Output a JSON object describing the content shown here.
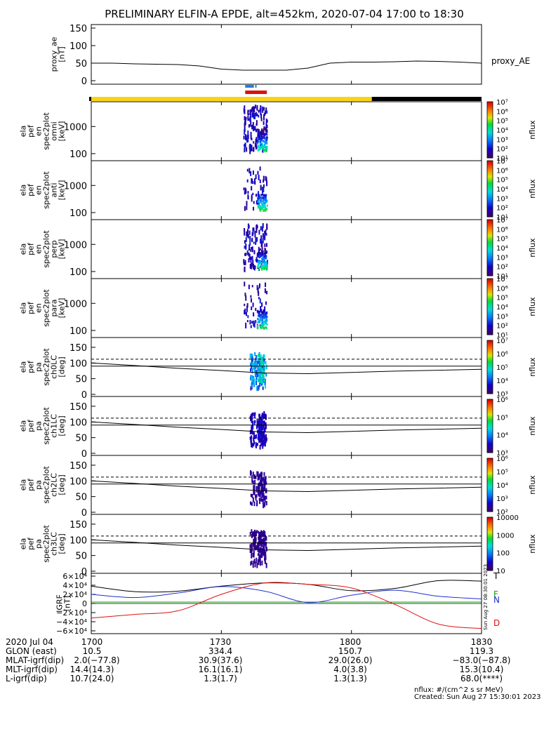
{
  "title": "PRELIMINARY ELFIN-A EPDE, alt=452km, 2020-07-04 17:00 to 18:30",
  "colors": {
    "yellow_bar": "#f7d417",
    "black_bar": "#000000",
    "blue_marker": "#1e7fe6",
    "red_marker": "#e01010",
    "grf_total": "#000000",
    "grf_blue": "#2030d0",
    "grf_green": "#10a010",
    "grf_red": "#e01010"
  },
  "chart_data": [
    {
      "id": "proxy_ae",
      "type": "line",
      "ylabel": [
        "proxy_ae",
        "[nT]"
      ],
      "legend": "proxy_AE",
      "ylim": [
        0,
        150
      ],
      "yticks": [
        "150",
        "100",
        "50",
        "0"
      ],
      "x": [
        0,
        5,
        10,
        15,
        20,
        25,
        30,
        35,
        40,
        45,
        50,
        55,
        60,
        65,
        70,
        75,
        80,
        85,
        90
      ],
      "y": [
        50,
        50,
        48,
        47,
        46,
        42,
        33,
        30,
        30,
        30,
        36,
        50,
        53,
        53,
        54,
        56,
        55,
        53,
        50
      ]
    },
    {
      "id": "omni",
      "type": "heatmap",
      "ylabel": [
        "ela",
        "pef",
        "en",
        "spec2plot",
        "omni",
        "[keV]"
      ],
      "yticks": [
        "1000",
        "100"
      ],
      "colorbar_label": "nflux",
      "colorbar_ticks": [
        "10⁷",
        "10⁶",
        "10⁵",
        "10⁴",
        "10³",
        "10²",
        "10¹"
      ]
    },
    {
      "id": "anti",
      "type": "heatmap",
      "ylabel": [
        "ela",
        "pef",
        "en",
        "spec2plot",
        "anti",
        "[keV]"
      ],
      "yticks": [
        "1000",
        "100"
      ],
      "colorbar_label": "nflux",
      "colorbar_ticks": [
        "10⁷",
        "10⁶",
        "10⁵",
        "10⁴",
        "10³",
        "10²",
        "10¹"
      ]
    },
    {
      "id": "perp",
      "type": "heatmap",
      "ylabel": [
        "ela",
        "pef",
        "en",
        "spec2plot",
        "perp",
        "[keV]"
      ],
      "yticks": [
        "1000",
        "100"
      ],
      "colorbar_label": "nflux",
      "colorbar_ticks": [
        "10⁷",
        "10⁶",
        "10⁵",
        "10⁴",
        "10³",
        "10²",
        "10¹"
      ]
    },
    {
      "id": "para",
      "type": "heatmap",
      "ylabel": [
        "ela",
        "pef",
        "en",
        "spec2plot",
        "para",
        "[keV]"
      ],
      "yticks": [
        "1000",
        "100"
      ],
      "colorbar_label": "nflux",
      "colorbar_ticks": [
        "10⁷",
        "10⁶",
        "10⁵",
        "10⁴",
        "10³",
        "10²",
        "10¹"
      ]
    },
    {
      "id": "ch0LC",
      "type": "heatmap",
      "ylabel": [
        "ela",
        "pef",
        "pa",
        "spec2plot",
        "ch0LC",
        "[deg]"
      ],
      "yticks": [
        "150",
        "100",
        "50",
        "0"
      ],
      "colorbar_label": "nflux",
      "colorbar_ticks": [
        "10⁷",
        "10⁶",
        "10⁵",
        "10⁴",
        "10³"
      ]
    },
    {
      "id": "ch1LC",
      "type": "heatmap",
      "ylabel": [
        "ela",
        "pef",
        "pa",
        "spec2plot",
        "ch1LC",
        "[deg]"
      ],
      "yticks": [
        "150",
        "100",
        "50",
        "0"
      ],
      "colorbar_label": "nflux",
      "colorbar_ticks": [
        "10⁶",
        "10⁵",
        "10⁴",
        "10³"
      ]
    },
    {
      "id": "ch2LC",
      "type": "heatmap",
      "ylabel": [
        "ela",
        "pef",
        "pa",
        "spec2plot",
        "ch2LC",
        "[deg]"
      ],
      "yticks": [
        "150",
        "100",
        "50",
        "0"
      ],
      "colorbar_label": "nflux",
      "colorbar_ticks": [
        "10⁶",
        "10⁵",
        "10⁴",
        "10³",
        "10²"
      ]
    },
    {
      "id": "ch3LC",
      "type": "heatmap",
      "ylabel": [
        "ela",
        "pef",
        "pa",
        "spec2plot",
        "ch3LC",
        "[deg]"
      ],
      "yticks": [
        "150",
        "100",
        "50",
        "0"
      ],
      "colorbar_label": "nflux",
      "colorbar_ticks": [
        "10000",
        "1000",
        "100",
        "10"
      ]
    },
    {
      "id": "igrf",
      "type": "line",
      "ylabel": [
        "IGRF",
        "[nT]"
      ],
      "ylim": [
        -60000,
        60000
      ],
      "yticks": [
        "6×10⁴",
        "4×10⁴",
        "2×10⁴",
        "0",
        "−2×10⁴",
        "−4×10⁴",
        "−6×10⁴"
      ],
      "legend": [
        "T",
        "F",
        "N",
        "D"
      ],
      "series_colors": [
        "#000000",
        "#10a010",
        "#2030d0",
        "#e01010"
      ],
      "series": [
        {
          "name": "T",
          "x": [
            0,
            10,
            20,
            30,
            40,
            50,
            60,
            70,
            80,
            90
          ],
          "y": [
            38000,
            26000,
            27000,
            38000,
            45000,
            42000,
            28000,
            33000,
            50000,
            49000
          ]
        },
        {
          "name": "F",
          "x": [
            0,
            90
          ],
          "y": [
            3000,
            3000
          ]
        },
        {
          "name": "N",
          "x": [
            0,
            10,
            20,
            30,
            40,
            50,
            60,
            70,
            80,
            90
          ],
          "y": [
            20000,
            13000,
            23000,
            37000,
            27000,
            2000,
            18000,
            29000,
            16000,
            10000
          ]
        },
        {
          "name": "D",
          "x": [
            0,
            10,
            20,
            30,
            40,
            50,
            60,
            70,
            80,
            90
          ],
          "y": [
            -32000,
            -24000,
            -16000,
            20000,
            45000,
            42000,
            34000,
            -2000,
            -45000,
            -55000
          ]
        }
      ],
      "side_note": "Sun Aug 27 08:30:01 2023"
    }
  ],
  "footer": {
    "date": "2020 Jul 04",
    "time_ticks": [
      "1700",
      "1730",
      "1800",
      "1830"
    ],
    "rows": [
      {
        "label": "GLON (east)",
        "values": [
          "10.5",
          "334.4",
          "150.7",
          "119.3"
        ]
      },
      {
        "label": "MLAT-igrf(dip)",
        "values": [
          "2.0(−77.8)",
          "30.9(37.6)",
          "29.0(26.0)",
          "−83.0(−87.8)"
        ]
      },
      {
        "label": "MLT-igrf(dip)",
        "values": [
          "14.4(14.3)",
          "16.1(16.1)",
          "4.0(3.8)",
          "15.3(10.4)"
        ]
      },
      {
        "label": "L-igrf(dip)",
        "values": [
          "10.7(24.0)",
          "1.3(1.7)",
          "1.3(1.3)",
          "68.0(****)"
        ]
      }
    ],
    "units_note": "nflux: #/(cm^2 s sr MeV)",
    "created": "Created: Sun Aug 27 15:30:01 2023"
  }
}
